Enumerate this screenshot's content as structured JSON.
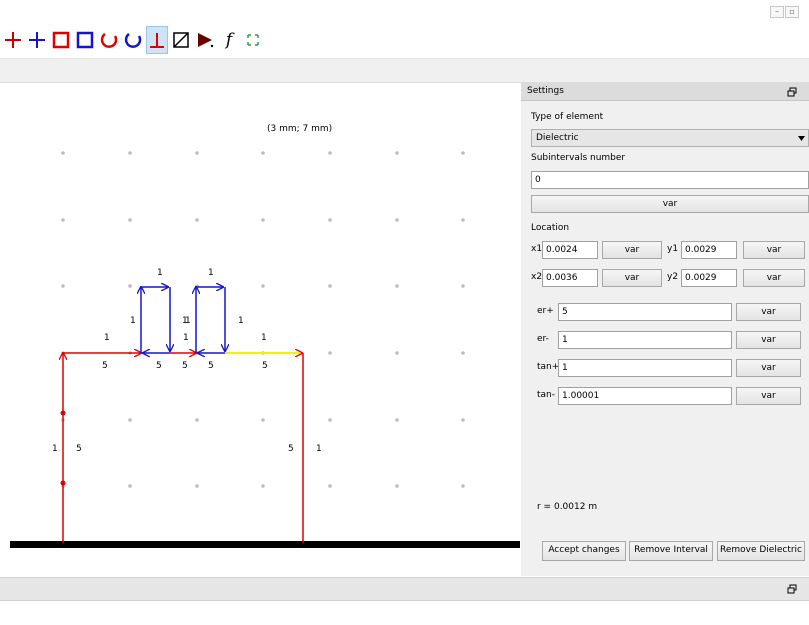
{
  "window": {
    "minimize_icon": "minimize-icon",
    "restore_icon": "restore-icon"
  },
  "toolbar": {
    "tools": [
      "add-node-red",
      "add-node-blue",
      "rect-red",
      "rect-blue",
      "circle-red",
      "circle-blue",
      "perpendicular",
      "diagonal-box",
      "play-marker",
      "function",
      "expand"
    ],
    "function_label": "f",
    "active_tool": "perpendicular"
  },
  "canvas": {
    "coord_readout": "(3 mm; 7 mm)",
    "labels": {
      "top_a": "1",
      "top_b": "1",
      "left_a": "1",
      "left_b": "1",
      "left_c": "1",
      "left_d": "1",
      "mid_a": "1",
      "mid_b": "1",
      "bot_a": "5",
      "bot_b": "5",
      "bot_c": "5",
      "bot_d": "5",
      "bot_e": "5",
      "side_a": "1",
      "side_b": "5",
      "side_c": "5",
      "side_d": "1"
    },
    "colors": {
      "red": "#e00000",
      "blue": "#1515cc",
      "yellow": "#f3f300",
      "ground": "#000000"
    }
  },
  "settings": {
    "title": "Settings",
    "type_label": "Type of element",
    "type_value": "Dielectric",
    "subintervals_label": "Subintervals number",
    "subintervals_value": "0",
    "var": "var",
    "location_label": "Location",
    "x1_label": "x1",
    "x1_value": "0.0024",
    "y1_label": "y1",
    "y1_value": "0.0029",
    "x2_label": "x2",
    "x2_value": "0.0036",
    "y2_label": "y2",
    "y2_value": "0.0029",
    "er_plus_label": "er+",
    "er_plus_value": "5",
    "er_minus_label": "er-",
    "er_minus_value": "1",
    "tan_plus_label": "tan+",
    "tan_plus_value": "1",
    "tan_minus_label": "tan-",
    "tan_minus_value": "1.00001",
    "radius": "r = 0.0012 m",
    "accept_button": "Accept changes",
    "remove_interval_button": "Remove Interval",
    "remove_dielectric_button": "Remove Dielectric"
  }
}
